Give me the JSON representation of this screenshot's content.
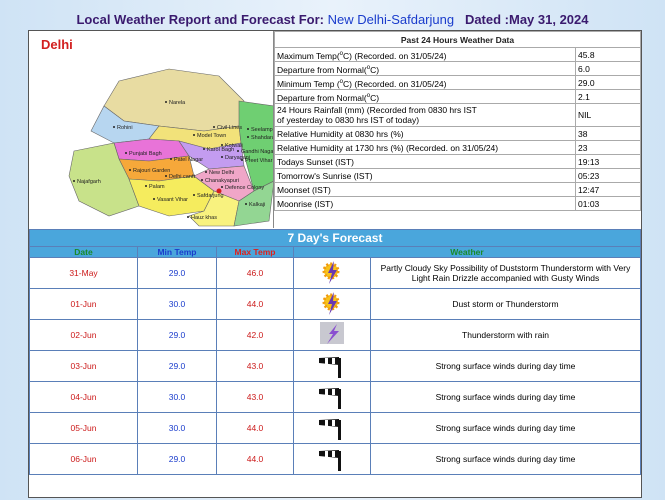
{
  "header": {
    "title": "Local Weather Report and Forecast For:",
    "station": "New Delhi-Safdarjung",
    "dated": "Dated :May 31, 2024"
  },
  "map": {
    "title": "Delhi",
    "labels": [
      "Narela",
      "Rohini",
      "Model Town",
      "Seelampur",
      "Shahdara",
      "Civil Lines",
      "Kotwali",
      "Punjabi Bagh",
      "Karol Bagh",
      "Gandhi Nagar",
      "Patel Nagar",
      "Daryaganj",
      "Preet Vihar",
      "Rajouri Garden",
      "New Delhi",
      "Najafgarh",
      "Delhi cantt",
      "Chanakyapuri",
      "Palam",
      "Defence Colony",
      "Vasant Vihar",
      "Safdarjung",
      "Kalkaji",
      "Hauz khas"
    ]
  },
  "past24": {
    "title": "Past 24 Hours Weather Data",
    "rows": [
      {
        "label_pre": "Maximum Temp(",
        "label_sup": "o",
        "label_post": "C) (Recorded. on 31/05/24)",
        "value": "45.8"
      },
      {
        "label_pre": "Departure from Normal(",
        "label_sup": "o",
        "label_post": "C)",
        "value": "6.0"
      },
      {
        "label_pre": "Minimum Temp (",
        "label_sup": "o",
        "label_post": "C) (Recorded. on 31/05/24)",
        "value": "29.0"
      },
      {
        "label_pre": "Departure from Normal(",
        "label_sup": "o",
        "label_post": "C)",
        "value": "2.1"
      },
      {
        "label_lines": [
          "24 Hours Rainfall (mm) (Recorded from 0830 hrs IST",
          "of yesterday to 0830 hrs IST of today)"
        ],
        "value": "NIL"
      },
      {
        "label": "Relative Humidity at 0830 hrs (%)",
        "value": "38"
      },
      {
        "label": "Relative Humidity at 1730 hrs (%) (Recorded. on 31/05/24)",
        "value": "23"
      },
      {
        "label": "Todays Sunset (IST)",
        "value": "19:13"
      },
      {
        "label": "Tomorrow's Sunrise (IST)",
        "value": "05:23"
      },
      {
        "label": "Moonset (IST)",
        "value": "12:47"
      },
      {
        "label": "Moonrise (IST)",
        "value": "01:03"
      }
    ]
  },
  "forecast": {
    "title": "7 Day's Forecast",
    "columns": [
      "Date",
      "Min Temp",
      "Max Temp",
      "Weather"
    ],
    "rows": [
      [
        "31-May",
        "29.0",
        "46.0",
        "Partly Cloudy Sky Possibility of Duststorm Thunderstorm with Very Light Rain Drizzle accompanied with Gusty Winds"
      ],
      [
        "01-Jun",
        "30.0",
        "44.0",
        "Dust storm or Thunderstorm"
      ],
      [
        "02-Jun",
        "29.0",
        "42.0",
        "Thunderstorm with rain"
      ],
      [
        "03-Jun",
        "29.0",
        "43.0",
        "Strong surface winds during day time"
      ],
      [
        "04-Jun",
        "30.0",
        "43.0",
        "Strong surface winds during day time"
      ],
      [
        "05-Jun",
        "30.0",
        "44.0",
        "Strong surface winds during day time"
      ],
      [
        "06-Jun",
        "29.0",
        "44.0",
        "Strong surface winds during day time"
      ]
    ]
  }
}
